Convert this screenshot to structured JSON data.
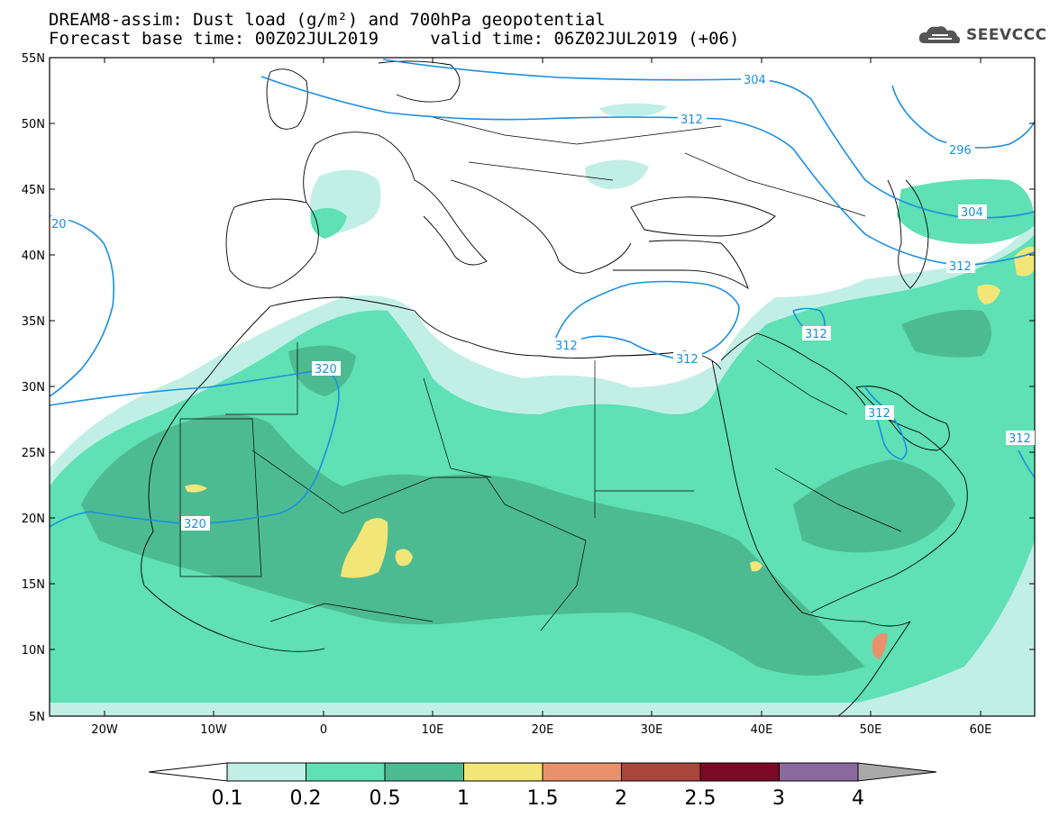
{
  "header": {
    "title_line1": "DREAM8-assim: Dust load (g/m²) and 700hPa geopotential",
    "title_line2": "Forecast base time: 00Z02JUL2019     valid time: 06Z02JUL2019 (+06)"
  },
  "logo": {
    "text": "SEEVCCC",
    "icon": "cloud-logo-icon"
  },
  "map": {
    "lat_labels": [
      "55N",
      "50N",
      "45N",
      "40N",
      "35N",
      "30N",
      "25N",
      "20N",
      "15N",
      "10N",
      "5N"
    ],
    "lon_labels": [
      "20W",
      "10W",
      "0",
      "10E",
      "20E",
      "30E",
      "40E",
      "50E",
      "60E"
    ],
    "contour_labels": {
      "c304a": "304",
      "c312a": "312",
      "c296": "296",
      "c304b": "304",
      "c312b": "312",
      "c20": "20",
      "c320a": "320",
      "c320b": "320",
      "c312c": "312",
      "c312d": "312",
      "c312e": "312",
      "c312f": "312",
      "c312g": "312"
    },
    "contour_color": "#1a8fe0"
  },
  "colorbar": {
    "labels": [
      "0.1",
      "0.2",
      "0.5",
      "1",
      "1.5",
      "2",
      "2.5",
      "3",
      "4"
    ],
    "colors": [
      "#c2efe5",
      "#5fe0b5",
      "#4dbb92",
      "#f2e678",
      "#e8916a",
      "#a8463c",
      "#7a0a25",
      "#8a6a9e"
    ],
    "under_color": "#ffffff",
    "over_color": "#a9a9a9"
  }
}
